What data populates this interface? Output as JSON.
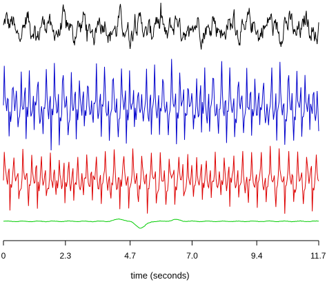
{
  "chart_data": {
    "type": "line",
    "title": "",
    "xlabel": "time (seconds)",
    "ylabel": "",
    "xlim": [
      0,
      11.7
    ],
    "x_ticks": [
      0,
      2.3,
      4.7,
      7.0,
      9.4,
      11.7
    ],
    "x_tick_labels": [
      "0",
      "2.3",
      "4.7",
      "7.0",
      "9.4",
      "11.7"
    ],
    "grid": false,
    "legend": "none",
    "series": [
      {
        "color": "#000000",
        "dt": 0.02,
        "profile": "noise",
        "band": 0,
        "amplitude": 1.0
      },
      {
        "color": "#0000cc",
        "dt": 0.03,
        "profile": "pulsed",
        "band": 1,
        "amplitude": 1.0,
        "period": 0.31
      },
      {
        "color": "#dd0000",
        "dt": 0.03,
        "profile": "pulsed",
        "band": 2,
        "amplitude": 1.0,
        "period": 0.34
      },
      {
        "color": "#00cc00",
        "dt": 0.03,
        "profile": "flat",
        "band": 3,
        "amplitude": 0.15,
        "bump_center": 5.1
      }
    ]
  }
}
